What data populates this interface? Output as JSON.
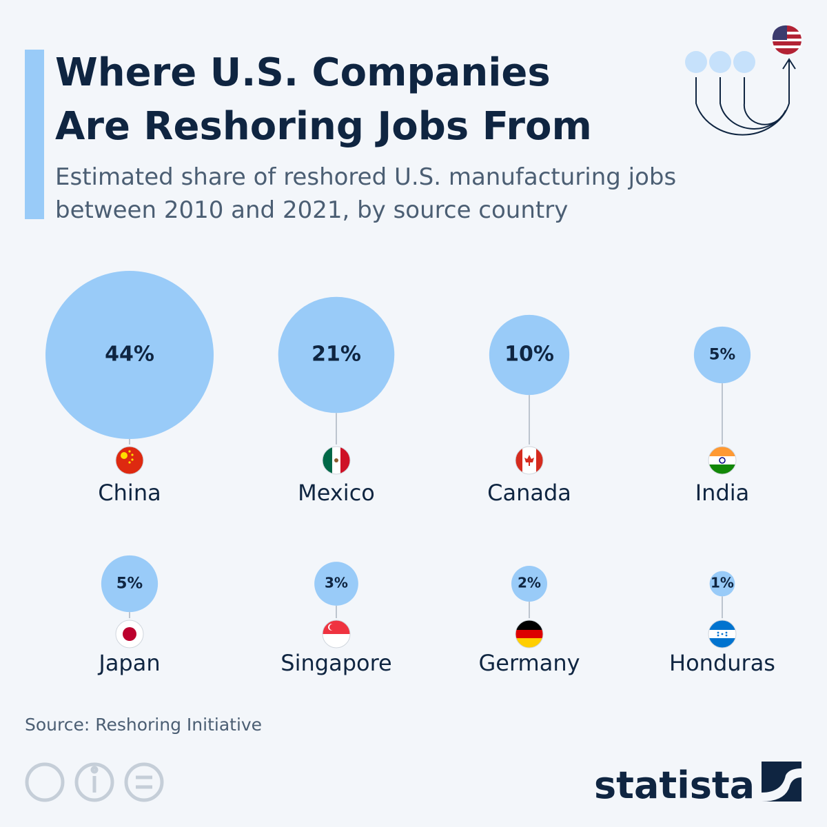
{
  "chart_data": {
    "type": "bubble",
    "title": [
      "Where U.S. Companies",
      "Are Reshoring Jobs From"
    ],
    "subtitle": [
      "Estimated share of reshored U.S. manufacturing jobs",
      "between 2010 and 2021, by source country"
    ],
    "categories": [
      "China",
      "Mexico",
      "Canada",
      "India",
      "Japan",
      "Singapore",
      "Germany",
      "Honduras"
    ],
    "values": [
      44,
      21,
      10,
      5,
      5,
      3,
      2,
      1
    ],
    "value_labels": [
      "44%",
      "21%",
      "10%",
      "5%",
      "5%",
      "3%",
      "2%",
      "1%"
    ],
    "color": "#99cbf8",
    "source": "Source: Reshoring Initiative",
    "brand": "statista"
  }
}
